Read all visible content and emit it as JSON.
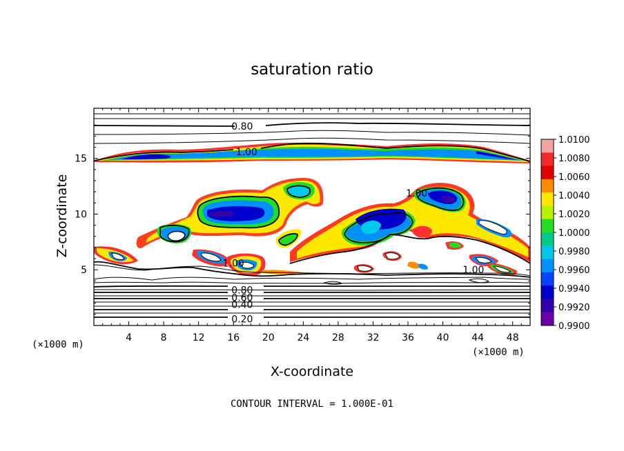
{
  "chart_data": {
    "type": "contour",
    "title": "saturation ratio",
    "xlabel": "X-coordinate",
    "ylabel": "Z-coordinate",
    "x_unit": "(×1000 m)",
    "x_ticks": [
      4,
      8,
      12,
      16,
      20,
      24,
      28,
      32,
      36,
      40,
      44,
      48
    ],
    "y_ticks": [
      5,
      10,
      15
    ],
    "xlim": [
      0,
      50
    ],
    "ylim": [
      0,
      19.5
    ],
    "footer": "CONTOUR INTERVAL = 1.000E-01",
    "contour_labels": [
      {
        "text": "0.80",
        "x": 17,
        "z": 17.9
      },
      {
        "text": "1.00",
        "x": 17.5,
        "z": 15.6
      },
      {
        "text": "1.00",
        "x": 37,
        "z": 11.9
      },
      {
        "text": "1.00",
        "x": 16,
        "z": 5.6
      },
      {
        "text": "1.00",
        "x": 43.5,
        "z": 5.0
      },
      {
        "text": "0.80",
        "x": 17,
        "z": 3.2
      },
      {
        "text": "0.60",
        "x": 17,
        "z": 2.5
      },
      {
        "text": "0.40",
        "x": 17,
        "z": 1.9
      },
      {
        "text": "0.20",
        "x": 17,
        "z": 0.6
      }
    ],
    "colorbar": {
      "ticks": [
        "1.0100",
        "1.0080",
        "1.0060",
        "1.0040",
        "1.0020",
        "1.0000",
        "0.9980",
        "0.9960",
        "0.9940",
        "0.9920",
        "0.9900"
      ],
      "colors": [
        "#f4a3a3",
        "#f02a2a",
        "#e00000",
        "#ff8c00",
        "#ffe800",
        "#b8f000",
        "#22dd22",
        "#00cc88",
        "#00c8e8",
        "#0090ff",
        "#0044ff",
        "#0000cc",
        "#3300aa",
        "#6a00a8"
      ]
    }
  }
}
